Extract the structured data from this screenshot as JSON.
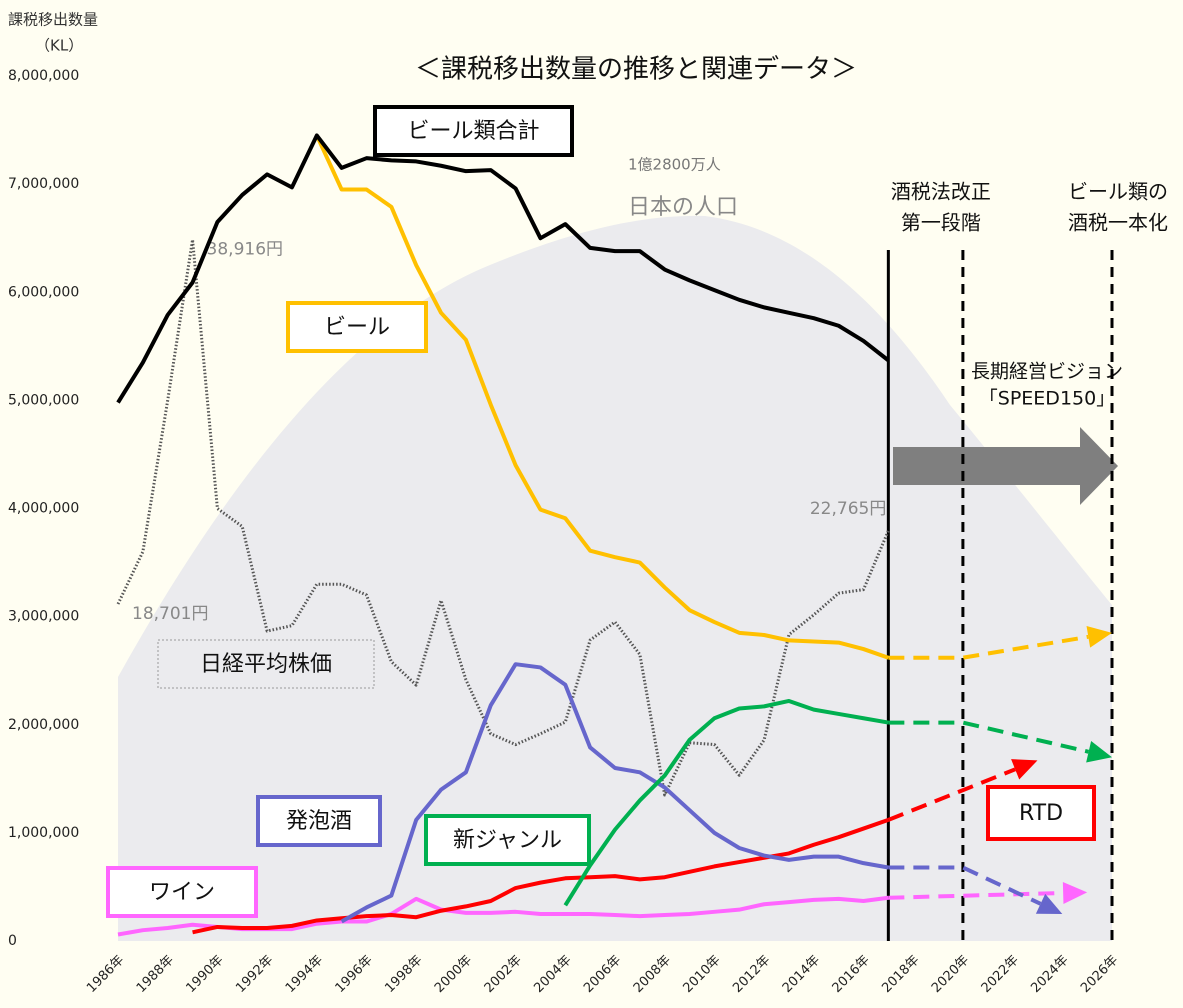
{
  "chart_data": {
    "type": "line",
    "title": "＜課税移出数量の推移と関連データ＞",
    "y_label": [
      "課税移出数量",
      "（KL）"
    ],
    "x": [
      1986,
      1987,
      1988,
      1989,
      1990,
      1991,
      1992,
      1993,
      1994,
      1995,
      1996,
      1997,
      1998,
      1999,
      2000,
      2001,
      2002,
      2003,
      2004,
      2005,
      2006,
      2007,
      2008,
      2009,
      2010,
      2011,
      2012,
      2013,
      2014,
      2015,
      2016,
      2017
    ],
    "xlim": [
      1986,
      2026
    ],
    "xticks": [
      {
        "value": 1986,
        "label": "1986年"
      },
      {
        "value": 1988,
        "label": "1988年"
      },
      {
        "value": 1990,
        "label": "1990年"
      },
      {
        "value": 1992,
        "label": "1992年"
      },
      {
        "value": 1994,
        "label": "1994年"
      },
      {
        "value": 1996,
        "label": "1996年"
      },
      {
        "value": 1998,
        "label": "1998年"
      },
      {
        "value": 2000,
        "label": "2000年"
      },
      {
        "value": 2002,
        "label": "2002年"
      },
      {
        "value": 2004,
        "label": "2004年"
      },
      {
        "value": 2006,
        "label": "2006年"
      },
      {
        "value": 2008,
        "label": "2008年"
      },
      {
        "value": 2010,
        "label": "2010年"
      },
      {
        "value": 2012,
        "label": "2012年"
      },
      {
        "value": 2014,
        "label": "2014年"
      },
      {
        "value": 2016,
        "label": "2016年"
      },
      {
        "value": 2018,
        "label": "2018年"
      },
      {
        "value": 2020,
        "label": "2020年"
      },
      {
        "value": 2022,
        "label": "2022年"
      },
      {
        "value": 2024,
        "label": "2024年"
      },
      {
        "value": 2026,
        "label": "2026年"
      }
    ],
    "ylim": [
      0,
      8000000
    ],
    "yticks": [
      {
        "value": 0,
        "label": "0"
      },
      {
        "value": 1000000,
        "label": "1,000,000"
      },
      {
        "value": 2000000,
        "label": "2,000,000"
      },
      {
        "value": 3000000,
        "label": "3,000,000"
      },
      {
        "value": 4000000,
        "label": "4,000,000"
      },
      {
        "value": 5000000,
        "label": "5,000,000"
      },
      {
        "value": 6000000,
        "label": "6,000,000"
      },
      {
        "value": 7000000,
        "label": "7,000,000"
      },
      {
        "value": 8000000,
        "label": "8,000,000"
      }
    ],
    "y2lim": [
      0,
      48000
    ],
    "series": [
      {
        "name": "ビール類合計",
        "color": "#000000",
        "values": [
          4980000,
          5350000,
          5790000,
          6090000,
          6650000,
          6900000,
          7090000,
          6970000,
          7450000,
          7150000,
          7240000,
          7220000,
          7210000,
          7170000,
          7120000,
          7130000,
          6960000,
          6500000,
          6630000,
          6410000,
          6380000,
          6380000,
          6210000,
          6110000,
          6020000,
          5930000,
          5860000,
          5810000,
          5760000,
          5690000,
          5550000,
          5370000
        ]
      },
      {
        "name": "ビール",
        "color": "#ffc000",
        "values": [
          null,
          null,
          null,
          null,
          null,
          null,
          null,
          null,
          7450000,
          6950000,
          6950000,
          6790000,
          6250000,
          5810000,
          5560000,
          4960000,
          4400000,
          3990000,
          3910000,
          3610000,
          3550000,
          3500000,
          3270000,
          3060000,
          2950000,
          2850000,
          2830000,
          2780000,
          2770000,
          2760000,
          2700000,
          2620000
        ],
        "projection": {
          "x": [
            2017,
            2020,
            2026
          ],
          "values": [
            2620000,
            2620000,
            2850000
          ]
        }
      },
      {
        "name": "発泡酒",
        "color": "#6666cc",
        "values": [
          null,
          null,
          null,
          null,
          null,
          null,
          null,
          null,
          null,
          180000,
          310000,
          420000,
          1120000,
          1400000,
          1560000,
          2180000,
          2560000,
          2530000,
          2370000,
          1790000,
          1600000,
          1560000,
          1420000,
          1210000,
          1000000,
          860000,
          790000,
          750000,
          780000,
          780000,
          720000,
          680000
        ],
        "projection": {
          "x": [
            2017,
            2020,
            2024
          ],
          "values": [
            680000,
            680000,
            250000
          ]
        }
      },
      {
        "name": "新ジャンル",
        "color": "#00b050",
        "values": [
          null,
          null,
          null,
          null,
          null,
          null,
          null,
          null,
          null,
          null,
          null,
          null,
          null,
          null,
          null,
          null,
          null,
          null,
          330000,
          700000,
          1030000,
          1300000,
          1530000,
          1860000,
          2060000,
          2150000,
          2170000,
          2220000,
          2140000,
          2100000,
          2060000,
          2020000
        ],
        "projection": {
          "x": [
            2017,
            2020,
            2026
          ],
          "values": [
            2020000,
            2020000,
            1700000
          ]
        }
      },
      {
        "name": "RTD",
        "color": "#ff0000",
        "values": [
          null,
          null,
          null,
          80000,
          130000,
          120000,
          120000,
          140000,
          190000,
          210000,
          230000,
          240000,
          220000,
          280000,
          320000,
          370000,
          490000,
          540000,
          580000,
          590000,
          600000,
          570000,
          590000,
          640000,
          690000,
          730000,
          770000,
          810000,
          890000,
          960000,
          1040000,
          1120000
        ],
        "projection": {
          "x": [
            2017,
            2023
          ],
          "values": [
            1120000,
            1670000
          ]
        }
      },
      {
        "name": "ワイン",
        "color": "#ff66ff",
        "values": [
          60000,
          100000,
          120000,
          150000,
          130000,
          110000,
          110000,
          110000,
          160000,
          180000,
          180000,
          250000,
          390000,
          290000,
          260000,
          260000,
          270000,
          250000,
          250000,
          250000,
          240000,
          230000,
          240000,
          250000,
          270000,
          290000,
          340000,
          360000,
          380000,
          390000,
          370000,
          400000
        ],
        "projection": {
          "x": [
            2017,
            2025
          ],
          "values": [
            400000,
            450000
          ]
        }
      },
      {
        "name": "日経平均株価",
        "color": "#555555",
        "axis": "y2",
        "dotted": true,
        "values": [
          18701,
          21600,
          30000,
          38916,
          24000,
          23000,
          17200,
          17500,
          19800,
          19800,
          19200,
          15500,
          14200,
          18900,
          14500,
          11500,
          10900,
          11500,
          12150,
          16700,
          17700,
          15900,
          8100,
          11000,
          10900,
          9200,
          11150,
          17000,
          18100,
          19300,
          19500,
          22765
        ],
        "value_labels": [
          "18,701円",
          null,
          null,
          "38,916円",
          null,
          null,
          null,
          null,
          null,
          null,
          null,
          null,
          null,
          null,
          null,
          null,
          null,
          null,
          null,
          null,
          null,
          null,
          null,
          null,
          null,
          null,
          null,
          null,
          null,
          null,
          null,
          "22,765円"
        ]
      }
    ],
    "population": {
      "label": "日本の人口",
      "peak_label": "1億2800万人"
    },
    "events": [
      {
        "x": 2017,
        "style": "solid"
      },
      {
        "x": 2020,
        "style": "dashed",
        "label": [
          "酒税法改正",
          "第一段階"
        ]
      },
      {
        "x": 2026,
        "style": "dashed",
        "label": [
          "ビール類の",
          "酒税一本化"
        ]
      }
    ],
    "vision": [
      "長期経営ビジョン",
      "「SPEED150」"
    ]
  }
}
